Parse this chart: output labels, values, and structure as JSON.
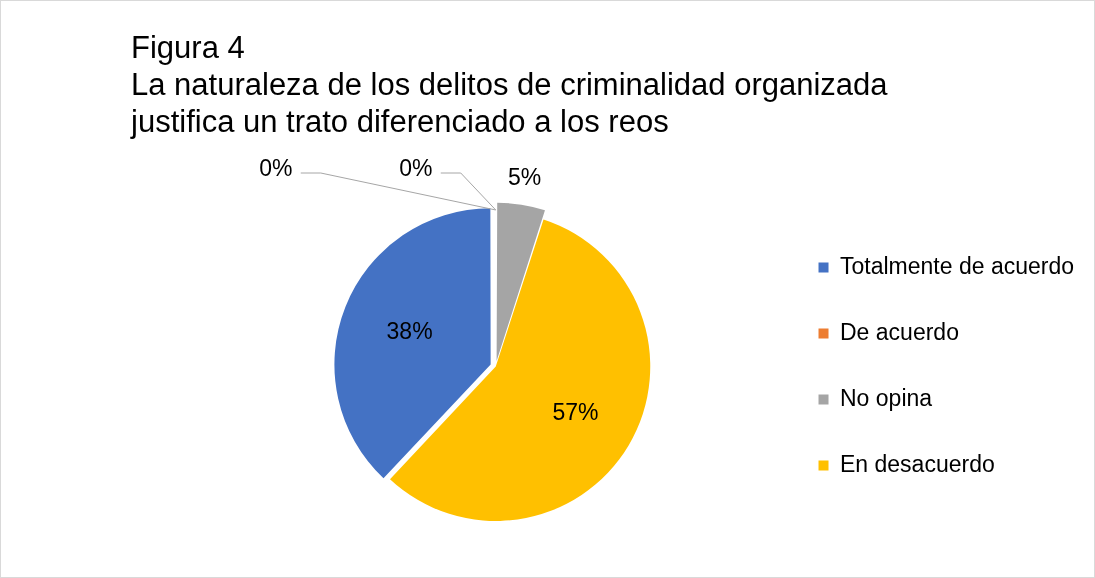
{
  "chart_data": {
    "type": "pie",
    "title": "Figura 4",
    "subtitle": "La naturaleza de los delitos de criminalidad organizada justifica un trato diferenciado a los reos",
    "categories": [
      "Totalmente de acuerdo",
      "De acuerdo",
      null,
      "No opina",
      "En desacuerdo"
    ],
    "values": [
      38,
      0,
      0,
      5,
      57
    ],
    "colors": [
      "#4472c4",
      "#ed7d31",
      "#5b9bd5",
      "#a5a5a5",
      "#ffc000"
    ],
    "value_labels": [
      "38%",
      "0%",
      "0%",
      "5%",
      "57%"
    ],
    "legend": "right"
  }
}
